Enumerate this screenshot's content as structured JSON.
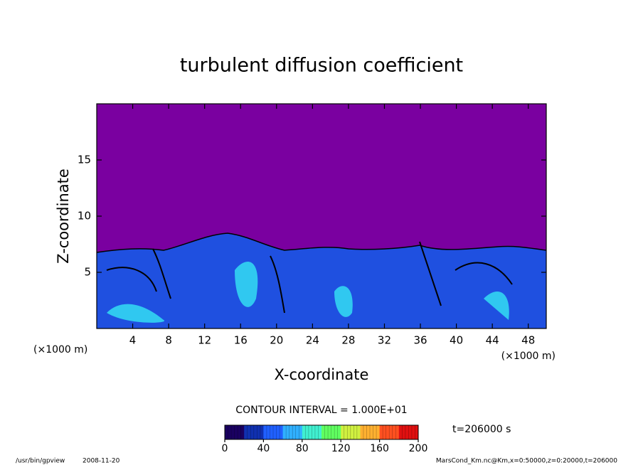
{
  "chart_data": {
    "type": "contour",
    "title": "turbulent diffusion coefficient",
    "xlabel": "X-coordinate",
    "ylabel": "Z-coordinate",
    "axis_unit": "(×1000 m)",
    "xlim": [
      0,
      50
    ],
    "xticks": [
      4,
      8,
      12,
      16,
      20,
      24,
      28,
      32,
      36,
      40,
      44,
      48
    ],
    "ylim": [
      0,
      20
    ],
    "yticks": [
      5,
      10,
      15
    ],
    "contour_interval": "CONTOUR INTERVAL = 1.000E+01",
    "colorbar": {
      "lim": [
        0,
        200
      ],
      "ticks": [
        0,
        40,
        80,
        120,
        160,
        200
      ],
      "colormap": [
        "#1a0060",
        "#1030b0",
        "#2060ff",
        "#30b0ff",
        "#40f0d0",
        "#60ff60",
        "#d0f040",
        "#ffb030",
        "#ff5020",
        "#e01010"
      ]
    },
    "time_label": "t=206000 s",
    "footer_left": "/usr/bin/gpview",
    "footer_date": "2008-11-20",
    "footer_right": "MarsCond_Km.nc@Km,x=0:50000,z=0:20000,t=206000"
  }
}
